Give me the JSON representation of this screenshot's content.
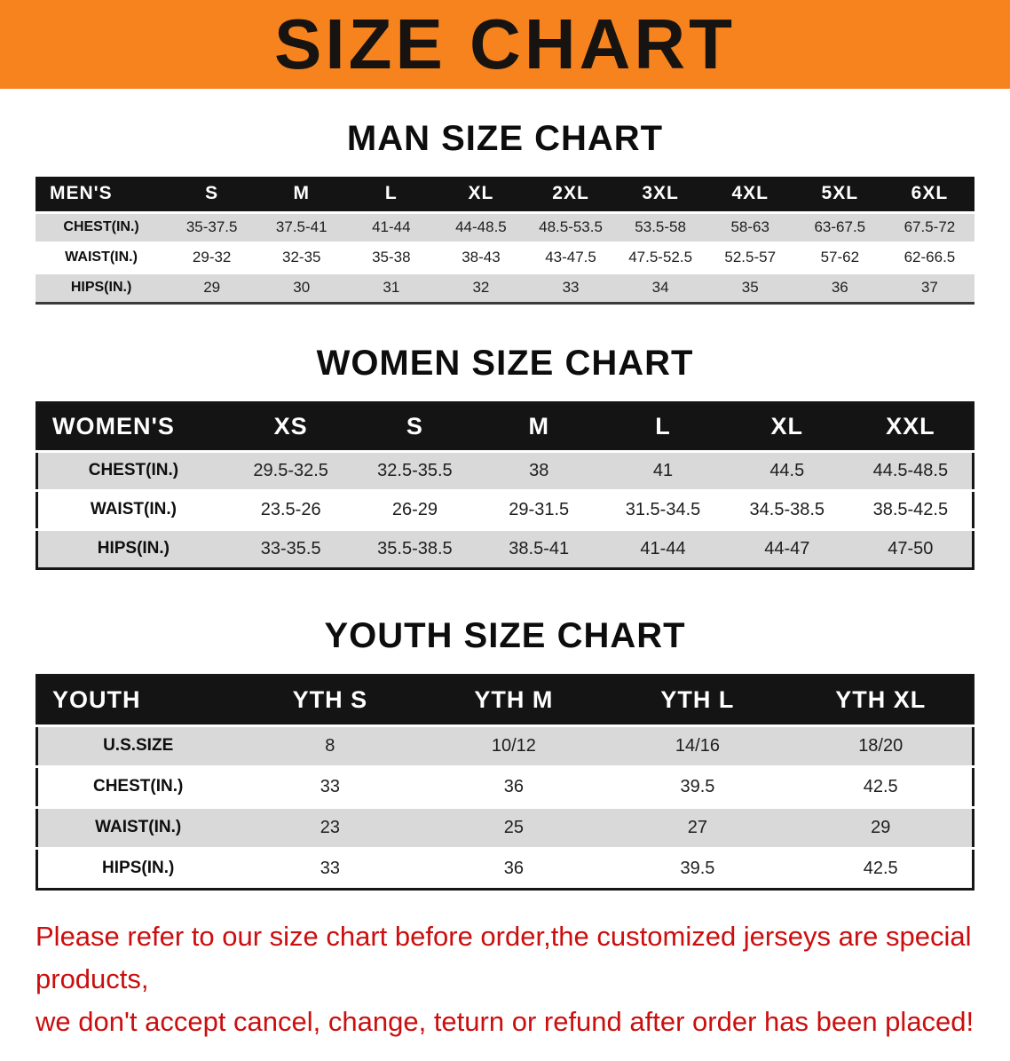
{
  "banner": {
    "title": "SIZE CHART",
    "bg_color": "#f6831e",
    "text_color": "#171310"
  },
  "colors": {
    "table_header_bg": "#141414",
    "table_header_text": "#ffffff",
    "row_stripe": "#d9d9d9",
    "disclaimer_text": "#cb0e0e"
  },
  "sections": [
    {
      "heading": "MAN SIZE CHART",
      "table": {
        "header": [
          "MEN'S",
          "S",
          "M",
          "L",
          "XL",
          "2XL",
          "3XL",
          "4XL",
          "5XL",
          "6XL"
        ],
        "rows": [
          {
            "label": "CHEST(IN.)",
            "values": [
              "35-37.5",
              "37.5-41",
              "41-44",
              "44-48.5",
              "48.5-53.5",
              "53.5-58",
              "58-63",
              "63-67.5",
              "67.5-72"
            ]
          },
          {
            "label": "WAIST(IN.)",
            "values": [
              "29-32",
              "32-35",
              "35-38",
              "38-43",
              "43-47.5",
              "47.5-52.5",
              "52.5-57",
              "57-62",
              "62-66.5"
            ]
          },
          {
            "label": "HIPS(IN.)",
            "values": [
              "29",
              "30",
              "31",
              "32",
              "33",
              "34",
              "35",
              "36",
              "37"
            ]
          }
        ]
      }
    },
    {
      "heading": "WOMEN SIZE CHART",
      "table": {
        "header": [
          "WOMEN'S",
          "XS",
          "S",
          "M",
          "L",
          "XL",
          "XXL"
        ],
        "rows": [
          {
            "label": "CHEST(IN.)",
            "values": [
              "29.5-32.5",
              "32.5-35.5",
              "38",
              "41",
              "44.5",
              "44.5-48.5"
            ]
          },
          {
            "label": "WAIST(IN.)",
            "values": [
              "23.5-26",
              "26-29",
              "29-31.5",
              "31.5-34.5",
              "34.5-38.5",
              "38.5-42.5"
            ]
          },
          {
            "label": "HIPS(IN.)",
            "values": [
              "33-35.5",
              "35.5-38.5",
              "38.5-41",
              "41-44",
              "44-47",
              "47-50"
            ]
          }
        ]
      }
    },
    {
      "heading": "YOUTH SIZE CHART",
      "table": {
        "header": [
          "YOUTH",
          "YTH S",
          "YTH M",
          "YTH L",
          "YTH XL"
        ],
        "rows": [
          {
            "label": "U.S.SIZE",
            "values": [
              "8",
              "10/12",
              "14/16",
              "18/20"
            ]
          },
          {
            "label": "CHEST(IN.)",
            "values": [
              "33",
              "36",
              "39.5",
              "42.5"
            ]
          },
          {
            "label": "WAIST(IN.)",
            "values": [
              "23",
              "25",
              "27",
              "29"
            ]
          },
          {
            "label": "HIPS(IN.)",
            "values": [
              "33",
              "36",
              "39.5",
              "42.5"
            ]
          }
        ]
      }
    }
  ],
  "disclaimer": {
    "line1": "Please refer to our size chart before order,the customized jerseys are special products,",
    "line2": "we don't accept cancel, change, teturn or refund after order has been placed!"
  }
}
